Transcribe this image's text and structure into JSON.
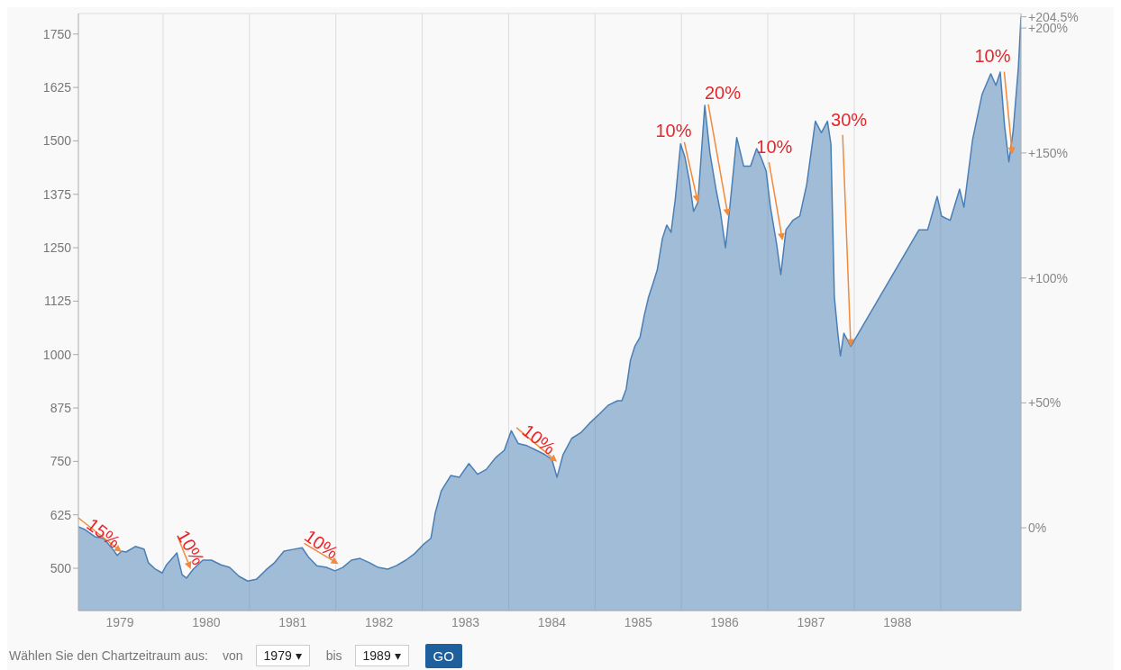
{
  "chart_data": {
    "type": "area",
    "x": [
      1979.02,
      1979.1,
      1979.21,
      1979.31,
      1979.42,
      1979.47,
      1979.52,
      1979.57,
      1979.68,
      1979.78,
      1979.83,
      1979.91,
      1979.99,
      1980.04,
      1980.16,
      1980.22,
      1980.27,
      1980.35,
      1980.46,
      1980.56,
      1980.67,
      1980.77,
      1980.88,
      1980.98,
      1981.08,
      1981.19,
      1981.29,
      1981.4,
      1981.5,
      1981.61,
      1981.68,
      1981.78,
      1981.89,
      1981.99,
      1982.08,
      1982.18,
      1982.28,
      1982.39,
      1982.49,
      1982.6,
      1982.7,
      1982.81,
      1982.91,
      1983.01,
      1983.1,
      1983.15,
      1983.22,
      1983.33,
      1983.43,
      1983.54,
      1983.64,
      1983.74,
      1983.85,
      1983.95,
      1984.03,
      1984.11,
      1984.21,
      1984.32,
      1984.42,
      1984.5,
      1984.56,
      1984.63,
      1984.73,
      1984.84,
      1984.94,
      1985.05,
      1985.15,
      1985.26,
      1985.31,
      1985.36,
      1985.41,
      1985.46,
      1985.52,
      1985.57,
      1985.62,
      1985.67,
      1985.72,
      1985.78,
      1985.83,
      1985.88,
      1985.93,
      1985.99,
      1986.04,
      1986.09,
      1986.14,
      1986.19,
      1986.27,
      1986.33,
      1986.4,
      1986.45,
      1986.51,
      1986.56,
      1986.64,
      1986.72,
      1986.8,
      1986.87,
      1986.92,
      1986.98,
      1987.03,
      1987.1,
      1987.15,
      1987.21,
      1987.29,
      1987.37,
      1987.45,
      1987.55,
      1987.62,
      1987.69,
      1987.73,
      1987.77,
      1987.81,
      1987.84,
      1987.88,
      1987.96,
      1988.75,
      1988.85,
      1988.96,
      1989.01,
      1989.11,
      1989.22,
      1989.27,
      1989.37,
      1989.48,
      1989.58,
      1989.64,
      1989.69,
      1989.74,
      1989.79,
      1989.84,
      1989.9,
      1989.93
    ],
    "series": [
      {
        "color": "#4a7fb5",
        "values": [
          597,
          590,
          574,
          570,
          544,
          530,
          540,
          538,
          551,
          545,
          513,
          498,
          489,
          508,
          536,
          485,
          477,
          498,
          519,
          519,
          508,
          502,
          481,
          470,
          474,
          496,
          513,
          540,
          544,
          548,
          527,
          506,
          502,
          494,
          502,
          519,
          523,
          513,
          502,
          498,
          506,
          519,
          534,
          555,
          570,
          629,
          681,
          717,
          713,
          745,
          720,
          731,
          759,
          776,
          822,
          792,
          787,
          776,
          766,
          755,
          713,
          766,
          804,
          818,
          840,
          861,
          881,
          892,
          892,
          919,
          987,
          1019,
          1040,
          1092,
          1135,
          1166,
          1198,
          1272,
          1303,
          1286,
          1366,
          1493,
          1462,
          1409,
          1335,
          1356,
          1583,
          1471,
          1387,
          1335,
          1250,
          1345,
          1508,
          1441,
          1441,
          1482,
          1462,
          1430,
          1345,
          1261,
          1187,
          1292,
          1314,
          1324,
          1398,
          1546,
          1519,
          1546,
          1493,
          1135,
          1050,
          997,
          1050,
          1019,
          1292,
          1292,
          1370,
          1324,
          1314,
          1387,
          1345,
          1503,
          1609,
          1657,
          1630,
          1661,
          1535,
          1451,
          1524,
          1672,
          1790
        ]
      }
    ],
    "xlim": [
      1979.02,
      1989.93
    ],
    "xticks": [
      {
        "value": 1979.5,
        "label": "1979"
      },
      {
        "value": 1980,
        "label": null
      },
      {
        "value": 1980.5,
        "label": "1980"
      },
      {
        "value": 1981,
        "label": null
      },
      {
        "value": 1981.5,
        "label": "1981"
      },
      {
        "value": 1982,
        "label": null
      },
      {
        "value": 1982.5,
        "label": "1982"
      },
      {
        "value": 1983,
        "label": null
      },
      {
        "value": 1983.5,
        "label": "1983"
      },
      {
        "value": 1984,
        "label": null
      },
      {
        "value": 1984.5,
        "label": "1984"
      },
      {
        "value": 1985,
        "label": null
      },
      {
        "value": 1985.5,
        "label": "1985"
      },
      {
        "value": 1986,
        "label": null
      },
      {
        "value": 1986.5,
        "label": "1986"
      },
      {
        "value": 1987,
        "label": null
      },
      {
        "value": 1987.5,
        "label": "1987"
      },
      {
        "value": 1988,
        "label": null
      },
      {
        "value": 1988.5,
        "label": "1988"
      },
      {
        "value": 1989,
        "label": null
      }
    ],
    "ylim": [
      401,
      1798
    ],
    "yticks": [
      500,
      625,
      750,
      875,
      1000,
      1125,
      1250,
      1375,
      1500,
      1625,
      1750
    ],
    "y2lim": [
      -33.1,
      205.8
    ],
    "y2ticks": [
      {
        "value": 0,
        "label": "0%"
      },
      {
        "value": 50,
        "label": "+50%"
      },
      {
        "value": 100,
        "label": "+100%"
      },
      {
        "value": 150,
        "label": "+150%"
      },
      {
        "value": 200,
        "label": "+200%"
      },
      {
        "value": 204.5,
        "label": "+204.5%"
      }
    ],
    "grid": true,
    "annotations": [
      {
        "text": "15%",
        "x": 1979.52,
        "y": 538
      },
      {
        "text": "10%",
        "x": 1980.32,
        "y": 498
      },
      {
        "text": "10%",
        "x": 1982.03,
        "y": 510
      },
      {
        "text": "10%",
        "x": 1984.56,
        "y": 749
      },
      {
        "text": "10%",
        "x": 1986.19,
        "y": 1356
      },
      {
        "text": "20%",
        "x": 1986.54,
        "y": 1324
      },
      {
        "text": "10%",
        "x": 1987.17,
        "y": 1267
      },
      {
        "text": "30%",
        "x": 1987.96,
        "y": 1019
      },
      {
        "text": "10%",
        "x": 1989.83,
        "y": 1468
      },
      "Wählen Sie den Chartzeitraum aus:",
      "von",
      "1979 ▾",
      "bis",
      "1989 ▾",
      "GO"
    ]
  }
}
